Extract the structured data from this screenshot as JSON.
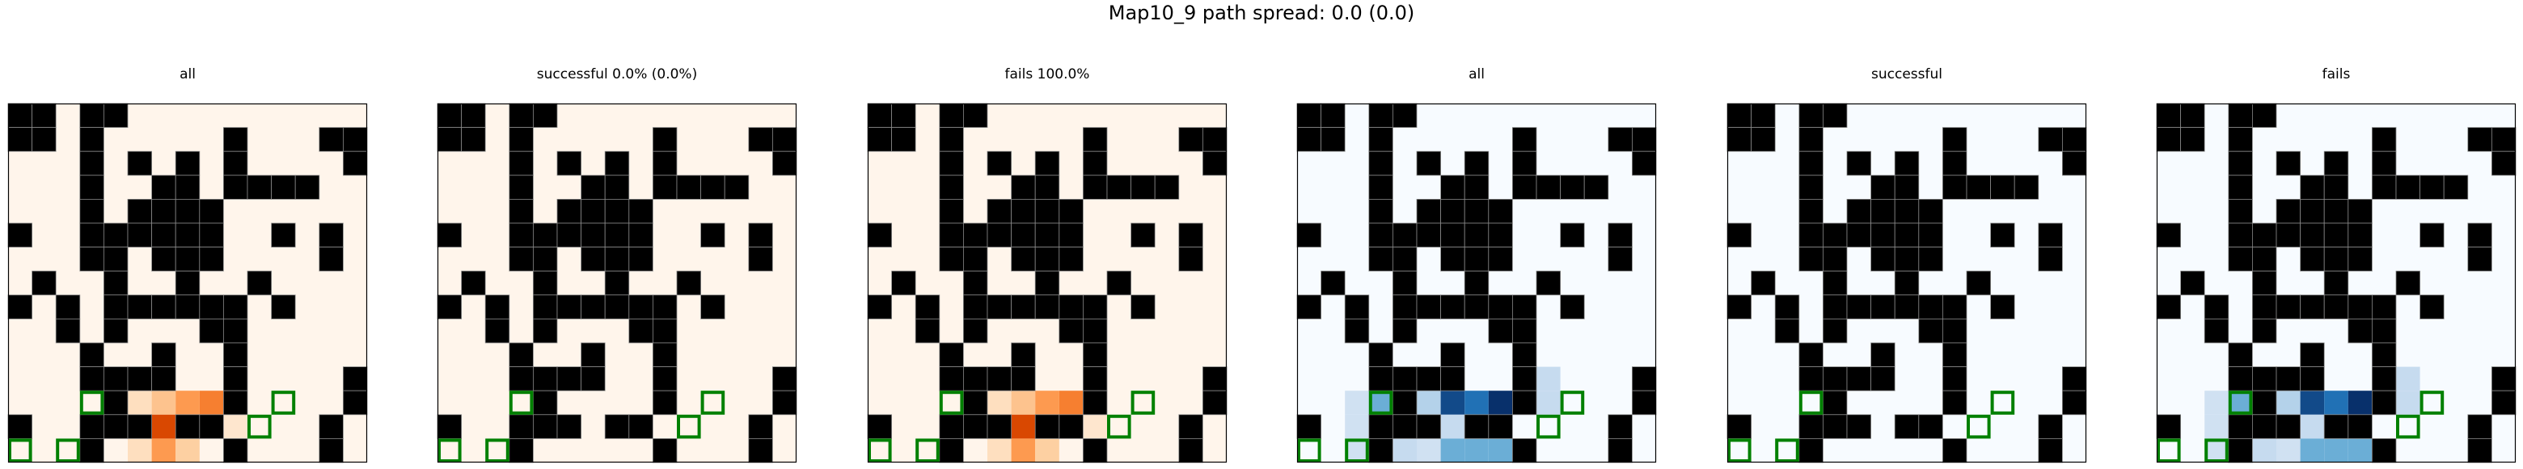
{
  "suptitle": "Map10_9 path spread: 0.0 (0.0)",
  "chart_data": {
    "type": "heatmap",
    "grid_size": [
      15,
      15
    ],
    "wall_color": "#000000",
    "cell_border_color": "#888888",
    "goal_marker_color": "#008000",
    "walls": [
      [
        0,
        0
      ],
      [
        0,
        1
      ],
      [
        0,
        3
      ],
      [
        0,
        4
      ],
      [
        1,
        0
      ],
      [
        1,
        1
      ],
      [
        1,
        3
      ],
      [
        1,
        9
      ],
      [
        1,
        13
      ],
      [
        1,
        14
      ],
      [
        2,
        3
      ],
      [
        2,
        5
      ],
      [
        2,
        7
      ],
      [
        2,
        9
      ],
      [
        2,
        14
      ],
      [
        3,
        3
      ],
      [
        3,
        6
      ],
      [
        3,
        7
      ],
      [
        3,
        9
      ],
      [
        3,
        10
      ],
      [
        3,
        11
      ],
      [
        3,
        12
      ],
      [
        4,
        3
      ],
      [
        4,
        5
      ],
      [
        4,
        6
      ],
      [
        4,
        7
      ],
      [
        4,
        8
      ],
      [
        5,
        0
      ],
      [
        5,
        3
      ],
      [
        5,
        4
      ],
      [
        5,
        5
      ],
      [
        5,
        6
      ],
      [
        5,
        7
      ],
      [
        5,
        8
      ],
      [
        5,
        11
      ],
      [
        5,
        13
      ],
      [
        6,
        3
      ],
      [
        6,
        4
      ],
      [
        6,
        6
      ],
      [
        6,
        7
      ],
      [
        6,
        8
      ],
      [
        6,
        13
      ],
      [
        7,
        1
      ],
      [
        7,
        4
      ],
      [
        7,
        7
      ],
      [
        7,
        10
      ],
      [
        8,
        0
      ],
      [
        8,
        2
      ],
      [
        8,
        4
      ],
      [
        8,
        5
      ],
      [
        8,
        6
      ],
      [
        8,
        7
      ],
      [
        8,
        8
      ],
      [
        8,
        9
      ],
      [
        8,
        11
      ],
      [
        9,
        2
      ],
      [
        9,
        4
      ],
      [
        9,
        8
      ],
      [
        9,
        9
      ],
      [
        10,
        3
      ],
      [
        10,
        6
      ],
      [
        10,
        9
      ],
      [
        11,
        3
      ],
      [
        11,
        4
      ],
      [
        11,
        5
      ],
      [
        11,
        6
      ],
      [
        11,
        9
      ],
      [
        11,
        14
      ],
      [
        12,
        4
      ],
      [
        12,
        9
      ],
      [
        12,
        14
      ],
      [
        13,
        0
      ],
      [
        13,
        3
      ],
      [
        13,
        4
      ],
      [
        13,
        5
      ],
      [
        13,
        7
      ],
      [
        13,
        8
      ],
      [
        13,
        13
      ],
      [
        14,
        3
      ],
      [
        14,
        13
      ],
      [
        14,
        9
      ],
      [
        15,
        9
      ],
      [
        16,
        9
      ],
      [
        17,
        9
      ]
    ],
    "goals": [
      [
        12,
        3
      ],
      [
        12,
        11
      ],
      [
        13,
        10
      ],
      [
        15,
        2
      ],
      [
        15,
        0
      ]
    ],
    "panels": [
      {
        "title": "all",
        "colormap": "Oranges",
        "heat": [
          {
            "cell": [
              12,
              5
            ],
            "value": 0.15
          },
          {
            "cell": [
              12,
              6
            ],
            "value": 0.3
          },
          {
            "cell": [
              12,
              7
            ],
            "value": 0.45
          },
          {
            "cell": [
              12,
              8
            ],
            "value": 0.55
          },
          {
            "cell": [
              13,
              5
            ],
            "value": 0.15
          },
          {
            "cell": [
              13,
              6
            ],
            "value": 0.75
          },
          {
            "cell": [
              13,
              7
            ],
            "value": 0.95
          },
          {
            "cell": [
              13,
              8
            ],
            "value": 0.25
          },
          {
            "cell": [
              13,
              9
            ],
            "value": 0.1
          },
          {
            "cell": [
              14,
              5
            ],
            "value": 0.15
          },
          {
            "cell": [
              14,
              6
            ],
            "value": 0.45
          },
          {
            "cell": [
              14,
              7
            ],
            "value": 0.25
          },
          {
            "cell": [
              15,
              7
            ],
            "value": 0.9
          },
          {
            "cell": [
              15,
              6
            ],
            "value": 0.15
          }
        ]
      },
      {
        "title": "successful 0.0% (0.0%)",
        "colormap": "Oranges",
        "heat": []
      },
      {
        "title": "fails 100.0%",
        "colormap": "Oranges",
        "heat": [
          {
            "cell": [
              12,
              5
            ],
            "value": 0.15
          },
          {
            "cell": [
              12,
              6
            ],
            "value": 0.3
          },
          {
            "cell": [
              12,
              7
            ],
            "value": 0.45
          },
          {
            "cell": [
              12,
              8
            ],
            "value": 0.55
          },
          {
            "cell": [
              13,
              5
            ],
            "value": 0.15
          },
          {
            "cell": [
              13,
              6
            ],
            "value": 0.75
          },
          {
            "cell": [
              13,
              7
            ],
            "value": 0.95
          },
          {
            "cell": [
              13,
              8
            ],
            "value": 0.25
          },
          {
            "cell": [
              13,
              9
            ],
            "value": 0.1
          },
          {
            "cell": [
              14,
              5
            ],
            "value": 0.15
          },
          {
            "cell": [
              14,
              6
            ],
            "value": 0.45
          },
          {
            "cell": [
              14,
              7
            ],
            "value": 0.25
          },
          {
            "cell": [
              15,
              7
            ],
            "value": 0.9
          },
          {
            "cell": [
              15,
              6
            ],
            "value": 0.15
          }
        ]
      },
      {
        "title": "all",
        "colormap": "Blues",
        "heat": [
          {
            "cell": [
              12,
              2
            ],
            "value": 0.2
          },
          {
            "cell": [
              12,
              3
            ],
            "value": 0.5
          },
          {
            "cell": [
              12,
              4
            ],
            "value": 0.5
          },
          {
            "cell": [
              12,
              5
            ],
            "value": 0.3
          },
          {
            "cell": [
              12,
              6
            ],
            "value": 0.9
          },
          {
            "cell": [
              12,
              7
            ],
            "value": 0.75
          },
          {
            "cell": [
              12,
              8
            ],
            "value": 1.0
          },
          {
            "cell": [
              12,
              9
            ],
            "value": 0.45
          },
          {
            "cell": [
              11,
              10
            ],
            "value": 0.25
          },
          {
            "cell": [
              12,
              10
            ],
            "value": 0.25
          },
          {
            "cell": [
              13,
              2
            ],
            "value": 0.2
          },
          {
            "cell": [
              13,
              6
            ],
            "value": 0.25
          },
          {
            "cell": [
              13,
              7
            ],
            "value": 0.2
          },
          {
            "cell": [
              14,
              2
            ],
            "value": 0.2
          },
          {
            "cell": [
              14,
              3
            ],
            "value": 0.2
          },
          {
            "cell": [
              14,
              4
            ],
            "value": 0.25
          },
          {
            "cell": [
              14,
              5
            ],
            "value": 0.2
          },
          {
            "cell": [
              14,
              6
            ],
            "value": 0.5
          },
          {
            "cell": [
              14,
              7
            ],
            "value": 0.5
          },
          {
            "cell": [
              14,
              8
            ],
            "value": 0.5
          },
          {
            "cell": [
              14,
              9
            ],
            "value": 0.3
          },
          {
            "cell": [
              15,
              1
            ],
            "value": 0.2
          },
          {
            "cell": [
              15,
              2
            ],
            "value": 0.55
          },
          {
            "cell": [
              15,
              3
            ],
            "value": 0.15
          },
          {
            "cell": [
              15,
              5
            ],
            "value": 0.15
          }
        ]
      },
      {
        "title": "successful",
        "colormap": "Blues",
        "heat": []
      },
      {
        "title": "fails",
        "colormap": "Blues",
        "heat": [
          {
            "cell": [
              12,
              2
            ],
            "value": 0.2
          },
          {
            "cell": [
              12,
              3
            ],
            "value": 0.5
          },
          {
            "cell": [
              12,
              4
            ],
            "value": 0.5
          },
          {
            "cell": [
              12,
              5
            ],
            "value": 0.3
          },
          {
            "cell": [
              12,
              6
            ],
            "value": 0.9
          },
          {
            "cell": [
              12,
              7
            ],
            "value": 0.75
          },
          {
            "cell": [
              12,
              8
            ],
            "value": 1.0
          },
          {
            "cell": [
              12,
              9
            ],
            "value": 0.45
          },
          {
            "cell": [
              11,
              10
            ],
            "value": 0.25
          },
          {
            "cell": [
              12,
              10
            ],
            "value": 0.25
          },
          {
            "cell": [
              13,
              2
            ],
            "value": 0.2
          },
          {
            "cell": [
              13,
              6
            ],
            "value": 0.25
          },
          {
            "cell": [
              13,
              7
            ],
            "value": 0.2
          },
          {
            "cell": [
              14,
              2
            ],
            "value": 0.2
          },
          {
            "cell": [
              14,
              3
            ],
            "value": 0.2
          },
          {
            "cell": [
              14,
              4
            ],
            "value": 0.25
          },
          {
            "cell": [
              14,
              5
            ],
            "value": 0.2
          },
          {
            "cell": [
              14,
              6
            ],
            "value": 0.5
          },
          {
            "cell": [
              14,
              7
            ],
            "value": 0.5
          },
          {
            "cell": [
              14,
              8
            ],
            "value": 0.5
          },
          {
            "cell": [
              14,
              9
            ],
            "value": 0.3
          },
          {
            "cell": [
              15,
              1
            ],
            "value": 0.2
          },
          {
            "cell": [
              15,
              2
            ],
            "value": 0.55
          },
          {
            "cell": [
              15,
              3
            ],
            "value": 0.15
          },
          {
            "cell": [
              15,
              5
            ],
            "value": 0.15
          }
        ]
      }
    ]
  }
}
